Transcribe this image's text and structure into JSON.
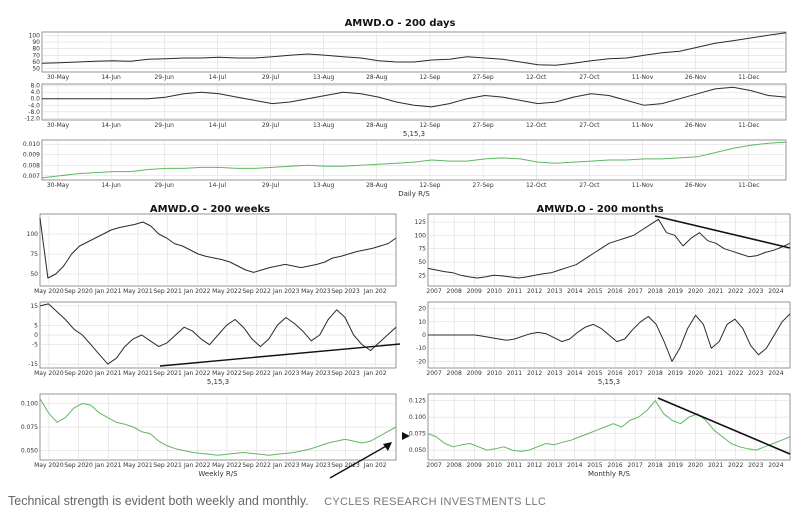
{
  "caption": {
    "text": "Technical strength is evident both weekly and monthly.",
    "brand": "CYCLES RESEARCH INVESTMENTS LLC"
  },
  "colors": {
    "price_line": "#2b2b2b",
    "osc_line": "#2b2b2b",
    "rs_line": "#5fb85f",
    "grid": "#d6d6d6",
    "frame": "#7a7a7a",
    "trendline": "#111111"
  },
  "chart_data": [
    {
      "id": "daily",
      "type": "line",
      "title": "AMWD.O - 200 days",
      "panels": [
        {
          "name": "price",
          "xlabel": "",
          "x_ticks": [
            "30-May",
            "14-Jun",
            "29-Jun",
            "14-Jul",
            "29-Jul",
            "13-Aug",
            "28-Aug",
            "12-Sep",
            "27-Sep",
            "12-Oct",
            "27-Oct",
            "11-Nov",
            "26-Nov",
            "11-Dec"
          ],
          "y_ticks": [
            "100",
            "90",
            "80",
            "70",
            "60",
            "50"
          ],
          "ylim": [
            45,
            105
          ],
          "values": [
            58,
            59,
            60,
            61,
            62,
            61,
            64,
            65,
            66,
            66,
            67,
            66,
            66,
            68,
            70,
            72,
            70,
            68,
            66,
            62,
            60,
            60,
            63,
            64,
            68,
            66,
            64,
            60,
            56,
            55,
            58,
            62,
            65,
            66,
            70,
            74,
            76,
            82,
            88,
            92,
            96,
            100,
            104
          ]
        },
        {
          "name": "oscillator",
          "xlabel": "5,15,3",
          "x_ticks": [
            "30-May",
            "14-Jun",
            "29-Jun",
            "14-Jul",
            "29-Jul",
            "13-Aug",
            "28-Aug",
            "12-Sep",
            "27-Sep",
            "12-Oct",
            "27-Oct",
            "11-Nov",
            "26-Nov",
            "11-Dec"
          ],
          "y_ticks": [
            "8.0",
            "4.0",
            "0.0",
            "-4.0",
            "-8.0",
            "-12.0"
          ],
          "ylim": [
            -13,
            9
          ],
          "values": [
            0,
            0,
            0,
            0,
            0,
            0,
            0,
            1,
            3,
            4,
            3,
            1,
            -1,
            -3,
            -2,
            0,
            2,
            4,
            3,
            1,
            -2,
            -4,
            -5,
            -3,
            0,
            2,
            1,
            -1,
            -3,
            -2,
            1,
            3,
            2,
            -1,
            -4,
            -3,
            0,
            3,
            6,
            7,
            5,
            2,
            1
          ]
        },
        {
          "name": "relative-strength",
          "xlabel": "Daily R/S",
          "x_ticks": [
            "30-May",
            "14-Jun",
            "29-Jun",
            "14-Jul",
            "29-Jul",
            "13-Aug",
            "28-Aug",
            "12-Sep",
            "27-Sep",
            "12-Oct",
            "27-Oct",
            "11-Nov",
            "26-Nov",
            "11-Dec"
          ],
          "y_ticks": [
            "0.010",
            "0.009",
            "0.008",
            "0.007"
          ],
          "ylim": [
            0.0066,
            0.0104
          ],
          "values": [
            0.0068,
            0.007,
            0.0072,
            0.0073,
            0.0074,
            0.0074,
            0.0076,
            0.0077,
            0.0077,
            0.0078,
            0.0078,
            0.0077,
            0.0077,
            0.0078,
            0.0079,
            0.008,
            0.0079,
            0.0079,
            0.008,
            0.0081,
            0.0082,
            0.0083,
            0.0085,
            0.0084,
            0.0084,
            0.0086,
            0.0087,
            0.0086,
            0.0083,
            0.0082,
            0.0083,
            0.0084,
            0.0085,
            0.0085,
            0.0086,
            0.0086,
            0.0087,
            0.0088,
            0.0092,
            0.0096,
            0.0099,
            0.0101,
            0.0102
          ]
        }
      ]
    },
    {
      "id": "weekly",
      "type": "line",
      "title": "AMWD.O - 200 weeks",
      "panels": [
        {
          "name": "price",
          "xlabel": "",
          "x_ticks": [
            "May 2020",
            "Sep 2020",
            "Jan 2021",
            "May 2021",
            "Sep 2021",
            "Jan 2022",
            "May 2022",
            "Sep 2022",
            "Jan 2023",
            "May 2023",
            "Sep 2023",
            "Jan 202"
          ],
          "y_ticks": [
            "100",
            "75",
            "50"
          ],
          "ylim": [
            35,
            125
          ],
          "values": [
            120,
            45,
            50,
            60,
            75,
            85,
            90,
            95,
            100,
            105,
            108,
            110,
            112,
            115,
            110,
            100,
            95,
            88,
            85,
            80,
            75,
            72,
            70,
            68,
            65,
            60,
            55,
            52,
            55,
            58,
            60,
            62,
            60,
            58,
            60,
            62,
            65,
            70,
            72,
            75,
            78,
            80,
            82,
            85,
            88,
            95
          ]
        },
        {
          "name": "oscillator",
          "xlabel": "5,15,3",
          "x_ticks": [
            "May 2020",
            "Sep 2020",
            "Jan 2021",
            "May 2021",
            "Sep 2021",
            "Jan 2022",
            "May 2022",
            "Sep 2022",
            "Jan 2023",
            "May 2023",
            "Sep 2023",
            "Jan 202"
          ],
          "y_ticks": [
            "15",
            "5",
            "0",
            "-5",
            "-15"
          ],
          "ylim": [
            -17,
            17
          ],
          "values": [
            15,
            16,
            12,
            8,
            3,
            0,
            -5,
            -10,
            -15,
            -12,
            -6,
            -2,
            0,
            -3,
            -6,
            -4,
            0,
            4,
            2,
            -2,
            -5,
            0,
            5,
            8,
            4,
            -2,
            -6,
            -2,
            5,
            9,
            6,
            2,
            -3,
            0,
            8,
            13,
            9,
            0,
            -5,
            -8,
            -4,
            0,
            4
          ]
        },
        {
          "name": "relative-strength",
          "xlabel": "Weekly R/S",
          "x_ticks": [
            "May 2020",
            "Sep 2020",
            "Jan 2021",
            "May 2021",
            "Sep 2021",
            "Jan 2022",
            "May 2022",
            "Sep 2022",
            "Jan 2023",
            "May 2023",
            "Sep 2023",
            "Jan 202"
          ],
          "y_ticks": [
            "0.100",
            "0.075",
            "0.050"
          ],
          "ylim": [
            0.04,
            0.11
          ],
          "values": [
            0.105,
            0.09,
            0.08,
            0.085,
            0.095,
            0.1,
            0.098,
            0.09,
            0.085,
            0.08,
            0.078,
            0.075,
            0.07,
            0.068,
            0.06,
            0.055,
            0.052,
            0.05,
            0.048,
            0.047,
            0.046,
            0.045,
            0.046,
            0.047,
            0.048,
            0.047,
            0.046,
            0.045,
            0.046,
            0.047,
            0.048,
            0.05,
            0.052,
            0.055,
            0.058,
            0.06,
            0.062,
            0.06,
            0.058,
            0.06,
            0.065,
            0.07,
            0.075
          ]
        }
      ]
    },
    {
      "id": "monthly",
      "type": "line",
      "title": "AMWD.O - 200 months",
      "panels": [
        {
          "name": "price",
          "xlabel": "",
          "x_ticks": [
            "2007",
            "2008",
            "2009",
            "2010",
            "2011",
            "2012",
            "2013",
            "2014",
            "2015",
            "2016",
            "2017",
            "2018",
            "2019",
            "2020",
            "2021",
            "2022",
            "2023",
            "2024"
          ],
          "y_ticks": [
            "125",
            "100",
            "75",
            "50",
            "25"
          ],
          "ylim": [
            5,
            140
          ],
          "values": [
            38,
            35,
            32,
            30,
            25,
            22,
            20,
            22,
            25,
            24,
            22,
            20,
            22,
            25,
            28,
            30,
            35,
            40,
            45,
            55,
            65,
            75,
            85,
            90,
            95,
            100,
            110,
            120,
            130,
            105,
            100,
            80,
            95,
            105,
            90,
            85,
            75,
            70,
            65,
            60,
            62,
            68,
            72,
            78,
            85
          ]
        },
        {
          "name": "oscillator",
          "xlabel": "5,15,3",
          "x_ticks": [
            "2007",
            "2008",
            "2009",
            "2010",
            "2011",
            "2012",
            "2013",
            "2014",
            "2015",
            "2016",
            "2017",
            "2018",
            "2019",
            "2020",
            "2021",
            "2022",
            "2023",
            "2024"
          ],
          "y_ticks": [
            "20",
            "10",
            "0",
            "-10",
            "-20"
          ],
          "ylim": [
            -25,
            25
          ],
          "values": [
            0,
            0,
            0,
            0,
            0,
            0,
            0,
            -1,
            -2,
            -3,
            -4,
            -3,
            -1,
            1,
            2,
            1,
            -2,
            -5,
            -3,
            2,
            6,
            8,
            5,
            0,
            -5,
            -3,
            4,
            10,
            14,
            8,
            -5,
            -20,
            -10,
            5,
            15,
            8,
            -10,
            -5,
            8,
            12,
            5,
            -8,
            -15,
            -10,
            0,
            10,
            16
          ]
        },
        {
          "name": "relative-strength",
          "xlabel": "Monthly R/S",
          "x_ticks": [
            "2007",
            "2008",
            "2009",
            "2010",
            "2011",
            "2012",
            "2013",
            "2014",
            "2015",
            "2016",
            "2017",
            "2018",
            "2019",
            "2020",
            "2021",
            "2022",
            "2023",
            "2024"
          ],
          "y_ticks": [
            "0.125",
            "0.100",
            "0.075",
            "0.050"
          ],
          "ylim": [
            0.035,
            0.135
          ],
          "values": [
            0.075,
            0.07,
            0.06,
            0.055,
            0.058,
            0.06,
            0.055,
            0.05,
            0.052,
            0.055,
            0.05,
            0.048,
            0.05,
            0.055,
            0.06,
            0.058,
            0.062,
            0.065,
            0.07,
            0.075,
            0.08,
            0.085,
            0.09,
            0.085,
            0.095,
            0.1,
            0.11,
            0.125,
            0.105,
            0.095,
            0.09,
            0.1,
            0.105,
            0.095,
            0.08,
            0.07,
            0.06,
            0.055,
            0.052,
            0.05,
            0.055,
            0.06,
            0.065,
            0.07
          ]
        }
      ]
    }
  ]
}
